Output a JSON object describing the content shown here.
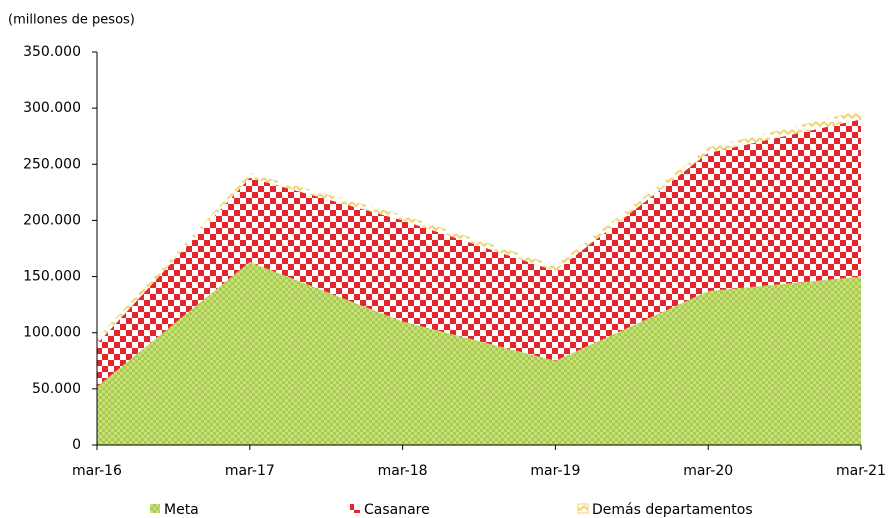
{
  "chart_data": {
    "type": "stacked-area",
    "y_label": "(millones  de pesos)",
    "categories": [
      "mar-16",
      "mar-17",
      "mar-18",
      "mar-19",
      "mar-20",
      "mar-21"
    ],
    "series": [
      {
        "name": "Meta",
        "color": "#9bc53d",
        "values": [
          52000,
          163000,
          110000,
          75000,
          137000,
          150000
        ]
      },
      {
        "name": "Casanare",
        "color": "#e3262b",
        "values": [
          38000,
          75000,
          90000,
          80000,
          123000,
          140000
        ]
      },
      {
        "name": "Demás departamentos",
        "color": "#f3d36b",
        "values": [
          5000,
          4000,
          5000,
          5000,
          5000,
          8000
        ]
      }
    ],
    "ylim": [
      0,
      350000
    ],
    "yticks": [
      0,
      {
        "value": 50000,
        "label": "50.000"
      },
      {
        "value": 100000,
        "label": "100.000"
      },
      {
        "value": 150000,
        "label": "150.000"
      },
      {
        "value": 200000,
        "label": "200.000"
      },
      {
        "value": 250000,
        "label": "250.000"
      },
      {
        "value": 300000,
        "label": "300.000"
      },
      {
        "value": 350000,
        "label": "350.000"
      }
    ],
    "grid": false
  }
}
